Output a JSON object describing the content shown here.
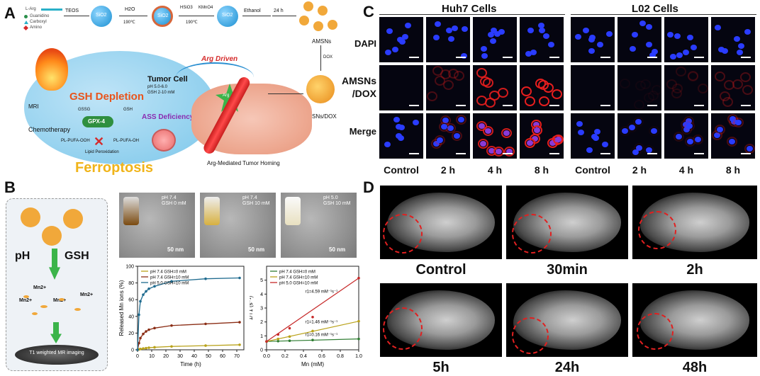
{
  "panels": {
    "A": "A",
    "B": "B",
    "C": "C",
    "D": "D"
  },
  "panelA": {
    "legend": [
      "L-Arg",
      "Guanidino",
      "Carboxyl",
      "Amino"
    ],
    "steps": [
      "TEOS",
      "H2O",
      "190℃",
      "HSiO3",
      "KMnO4",
      "190℃",
      "Ethanol",
      "24 h"
    ],
    "sio2": "SiO2",
    "amsns": "AMSNs",
    "dox": "DOX",
    "amsnsdox": "AMSNs/DOX",
    "arg_driven": "Arg Driven",
    "tumor_cell": "Tumor Cell",
    "ph_line": "pH 5.0-6.0",
    "gsh_line": "GSH 2-10 mM",
    "gsh_depletion": "GSH Depletion",
    "mri": "MRI",
    "gssg": "GSSG",
    "gsh": "GSH",
    "gpx4": "GPX-4",
    "ass": "ASS Deficiency",
    "chemo": "Chemotherapy",
    "pufa_ooh": "PL-PUFA-OOH",
    "pufa_oh": "PL-PUFA-OH",
    "lipid": "Lipid Peroxidation",
    "ferroptosis": "Ferroptosis",
    "homing": "Arg-Mediated Tumor Homing",
    "arg_small": "Arg"
  },
  "panelB": {
    "ph": "pH",
    "gsh": "GSH",
    "mn_labels": [
      "Mn2+",
      "Mn2+",
      "Mn2+",
      "Mn2+"
    ],
    "t1_caption": "T1 weighted MR imaging",
    "tem": [
      {
        "line1": "pH 7.4",
        "line2": "GSH 0 mM",
        "scale": "50 nm"
      },
      {
        "line1": "pH 7.4",
        "line2": "GSH 10 mM",
        "scale": "50 nm"
      },
      {
        "line1": "pH 5.0",
        "line2": "GSH 10 mM",
        "scale": "50 nm"
      }
    ]
  },
  "panelC": {
    "huh7": "Huh7 Cells",
    "l02": "L02 Cells",
    "rows": [
      "DAPI",
      "AMSNs",
      "/DOX",
      "Merge"
    ],
    "cols": [
      "Control",
      "2 h",
      "4 h",
      "8 h"
    ]
  },
  "panelD": {
    "labels": [
      "Control",
      "30min",
      "2h",
      "5h",
      "24h",
      "48h"
    ]
  },
  "chart_data": [
    {
      "type": "line",
      "xlabel": "Time (h)",
      "ylabel": "Released Mn ions (%)",
      "xlim": [
        0,
        75
      ],
      "ylim": [
        0,
        100
      ],
      "xticks": [
        0,
        10,
        20,
        30,
        40,
        50,
        60,
        70
      ],
      "yticks": [
        0,
        20,
        40,
        60,
        80,
        100
      ],
      "legend": "top-left",
      "series": [
        {
          "name": "pH 7.4  GSH=0 mM",
          "color": "#b9a21a",
          "x": [
            0,
            1,
            2,
            4,
            6,
            8,
            12,
            24,
            48,
            72
          ],
          "y": [
            0,
            0.5,
            1,
            1.5,
            2,
            2.5,
            3,
            4,
            5,
            6
          ]
        },
        {
          "name": "pH 7.4  GSH=10 mM",
          "color": "#8b2e16",
          "x": [
            0,
            1,
            2,
            4,
            6,
            8,
            12,
            24,
            48,
            72
          ],
          "y": [
            0,
            8,
            14,
            19,
            22,
            24,
            26,
            29,
            31,
            33
          ]
        },
        {
          "name": "pH 5.0  GSH=10 mM",
          "color": "#1f6b8f",
          "x": [
            0,
            1,
            2,
            4,
            6,
            8,
            12,
            24,
            48,
            72
          ],
          "y": [
            0,
            42,
            58,
            66,
            70,
            73,
            76,
            82,
            85,
            86
          ]
        }
      ]
    },
    {
      "type": "scatter",
      "xlabel": "Mn (mM)",
      "ylabel": "1/T1 (s⁻¹)",
      "xlim": [
        0,
        1.0
      ],
      "ylim": [
        0,
        6
      ],
      "xticks": [
        0.0,
        0.2,
        0.4,
        0.6,
        0.8,
        1.0
      ],
      "yticks": [
        0,
        1,
        2,
        3,
        4,
        5
      ],
      "legend": "top-left",
      "annotations": [
        "r1=4.59 mM⁻¹s⁻¹",
        "r1=1.46 mM⁻¹s⁻¹",
        "r1=0.16 mM⁻¹s⁻¹"
      ],
      "series": [
        {
          "name": "pH 7.4  GSH=0 mM",
          "color": "#2f7d32",
          "x": [
            0,
            0.125,
            0.25,
            0.5,
            1.0
          ],
          "y": [
            0.6,
            0.62,
            0.65,
            0.7,
            0.78
          ]
        },
        {
          "name": "pH 7.4  GSH=10 mM",
          "color": "#b9a21a",
          "x": [
            0,
            0.125,
            0.25,
            0.5,
            1.0
          ],
          "y": [
            0.6,
            0.78,
            0.95,
            1.35,
            2.05
          ]
        },
        {
          "name": "pH 5.0  GSH=10 mM",
          "color": "#c62828",
          "x": [
            0,
            0.125,
            0.25,
            0.5,
            1.0
          ],
          "y": [
            0.6,
            1.1,
            1.55,
            2.35,
            5.15
          ]
        }
      ]
    }
  ]
}
